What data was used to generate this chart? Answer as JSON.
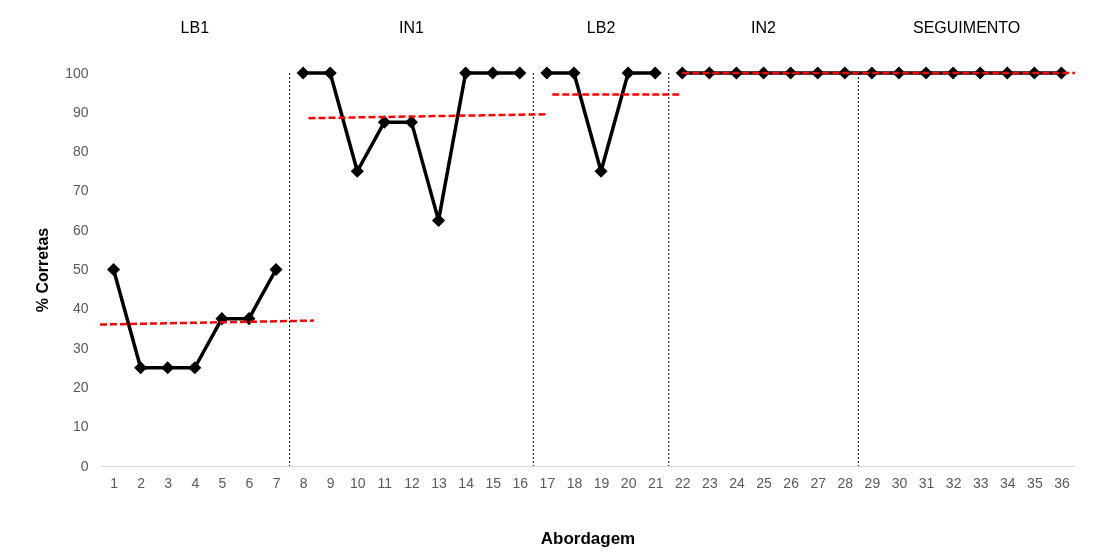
{
  "chart_data": {
    "type": "line",
    "xlabel": "Abordagem",
    "ylabel": "% Corretas",
    "x": [
      1,
      2,
      3,
      4,
      5,
      6,
      7,
      8,
      9,
      10,
      11,
      12,
      13,
      14,
      15,
      16,
      17,
      18,
      19,
      20,
      21,
      22,
      23,
      24,
      25,
      26,
      27,
      28,
      29,
      30,
      31,
      32,
      33,
      34,
      35,
      36
    ],
    "xlim": [
      0.5,
      36.5
    ],
    "xticks": [
      1,
      2,
      3,
      4,
      5,
      6,
      7,
      8,
      9,
      10,
      11,
      12,
      13,
      14,
      15,
      16,
      17,
      18,
      19,
      20,
      21,
      22,
      23,
      24,
      25,
      26,
      27,
      28,
      29,
      30,
      31,
      32,
      33,
      34,
      35,
      36
    ],
    "ylim": [
      0,
      100
    ],
    "yticks": [
      0,
      10,
      20,
      30,
      40,
      50,
      60,
      70,
      80,
      90,
      100
    ],
    "grid": false,
    "marker": "diamond",
    "line_style": "solid",
    "series": [
      {
        "color": "#000000",
        "values": [
          50,
          25,
          25,
          25,
          37.5,
          37.5,
          50,
          null,
          null,
          null,
          null,
          null,
          null,
          null,
          null,
          null,
          null,
          null,
          null,
          null,
          null,
          null,
          null,
          null,
          null,
          null,
          null,
          null,
          null,
          null,
          null,
          null,
          null,
          null,
          null,
          null
        ]
      },
      {
        "color": "#000000",
        "values": [
          null,
          null,
          null,
          null,
          null,
          null,
          null,
          100,
          100,
          75,
          87.5,
          87.5,
          62.5,
          100,
          100,
          100,
          null,
          null,
          null,
          null,
          null,
          null,
          null,
          null,
          null,
          null,
          null,
          null,
          null,
          null,
          null,
          null,
          null,
          null,
          null,
          null
        ]
      },
      {
        "color": "#000000",
        "values": [
          null,
          null,
          null,
          null,
          null,
          null,
          null,
          null,
          null,
          null,
          null,
          null,
          null,
          null,
          null,
          null,
          100,
          100,
          75,
          100,
          100,
          null,
          null,
          null,
          null,
          null,
          null,
          null,
          null,
          null,
          null,
          null,
          null,
          null,
          null,
          null
        ]
      },
      {
        "color": "#000000",
        "values": [
          null,
          null,
          null,
          null,
          null,
          null,
          null,
          null,
          null,
          null,
          null,
          null,
          null,
          null,
          null,
          null,
          null,
          null,
          null,
          null,
          null,
          100,
          100,
          100,
          100,
          100,
          100,
          100,
          100,
          100,
          100,
          100,
          100,
          100,
          100,
          100
        ]
      },
      {
        "type": "line",
        "color": "#ff0000",
        "line_style": "dashed",
        "marker": "none",
        "x": [
          0.5,
          8.4
        ],
        "values": [
          36,
          37
        ]
      },
      {
        "type": "line",
        "color": "#ff0000",
        "line_style": "dashed",
        "marker": "none",
        "x": [
          8.2,
          17
        ],
        "values": [
          88.5,
          89.5
        ]
      },
      {
        "type": "line",
        "color": "#ff0000",
        "line_style": "dashed",
        "marker": "none",
        "x": [
          17.2,
          21.9
        ],
        "values": [
          94.5,
          94.5
        ]
      },
      {
        "type": "line",
        "color": "#ff0000",
        "line_style": "dashed",
        "marker": "none",
        "x": [
          22,
          36.5
        ],
        "values": [
          100,
          100
        ]
      }
    ],
    "ref_lines": [
      {
        "axis": "x",
        "value": 7.5,
        "color": "#000000",
        "line_style": "dotted"
      },
      {
        "axis": "x",
        "value": 16.5,
        "color": "#000000",
        "line_style": "dotted"
      },
      {
        "axis": "x",
        "value": 21.5,
        "color": "#000000",
        "line_style": "dotted"
      },
      {
        "axis": "x",
        "value": 28.5,
        "color": "#000000",
        "line_style": "dotted"
      }
    ],
    "annotations": [
      "LB1",
      "IN1",
      "LB2",
      "IN2",
      "SEGUIMENTO"
    ]
  }
}
